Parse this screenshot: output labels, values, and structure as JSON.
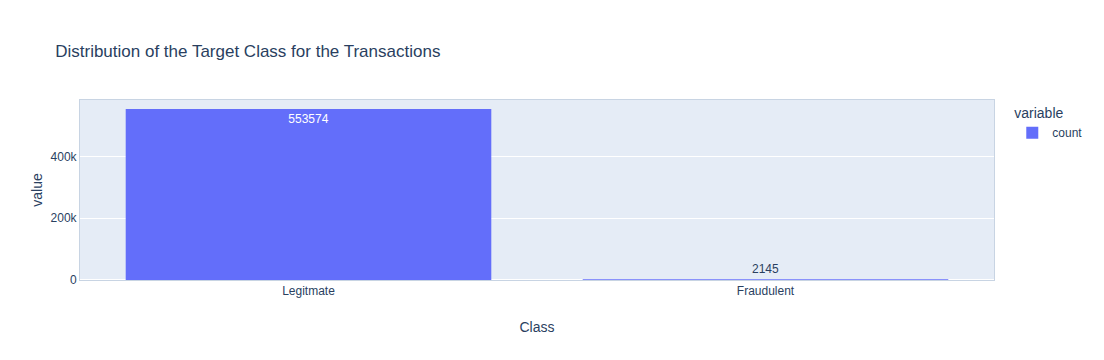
{
  "chart_data": {
    "type": "bar",
    "title": "Distribution of the Target Class for the Transactions",
    "x_label": "Class",
    "y_label": "value",
    "categories": [
      "Legitmate",
      "Fraudulent"
    ],
    "series": [
      {
        "name": "count",
        "color": "#636efa",
        "values": [
          553574,
          2145
        ]
      }
    ],
    "legend_title": "variable",
    "legend": "top right",
    "ylim": [
      0,
      582709
    ],
    "yticks": [
      0,
      {
        "value": 200000,
        "label": "200k"
      },
      {
        "value": 400000,
        "label": "400k"
      }
    ],
    "grid": true,
    "data_labels": true
  }
}
